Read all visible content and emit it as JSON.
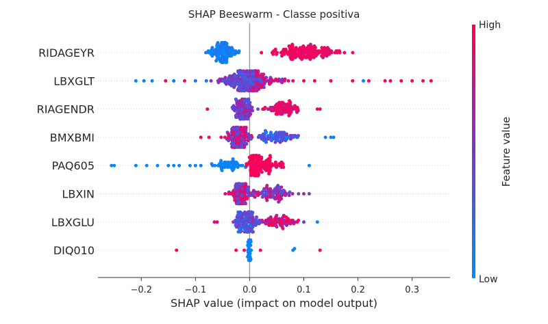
{
  "chart_data": {
    "type": "scatter",
    "subtype": "shap-beeswarm",
    "title": "SHAP Beeswarm - Classe positiva",
    "xlabel": "SHAP value (impact on model output)",
    "colorbar_label": "Feature value",
    "colorbar_high": "High",
    "colorbar_low": "Low",
    "xlim": [
      -0.28,
      0.37
    ],
    "xticks": [
      -0.2,
      -0.1,
      0.0,
      0.1,
      0.2,
      0.3
    ],
    "xtick_labels": [
      "−0.2",
      "−0.1",
      "0.0",
      "0.1",
      "0.2",
      "0.3"
    ],
    "colors": {
      "low": "#008bfb",
      "high": "#ff0052",
      "zero_line": "#999999",
      "grid": "#cccccc"
    },
    "features": [
      {
        "name": "RIDAGEYR",
        "clusters": [
          {
            "center": -0.05,
            "spread": 0.025,
            "count": 120,
            "value_low": 0.0,
            "value_high": 0.15
          },
          {
            "center": 0.1,
            "spread": 0.055,
            "count": 160,
            "value_low": 0.8,
            "value_high": 1.0
          }
        ],
        "outliers": [
          {
            "x": 0.175,
            "v": 0.95
          }
        ]
      },
      {
        "name": "LBXGLT",
        "clusters": [
          {
            "center": -0.015,
            "spread": 0.035,
            "count": 150,
            "value_low": 0.2,
            "value_high": 0.7
          },
          {
            "center": 0.02,
            "spread": 0.04,
            "count": 90,
            "value_low": 0.4,
            "value_high": 0.9
          }
        ],
        "outliers": [
          {
            "x": -0.21,
            "v": 0.05
          },
          {
            "x": -0.195,
            "v": 0.05
          },
          {
            "x": -0.18,
            "v": 0.05
          },
          {
            "x": -0.155,
            "v": 0.9
          },
          {
            "x": -0.14,
            "v": 0.1
          },
          {
            "x": -0.12,
            "v": 0.85
          },
          {
            "x": -0.1,
            "v": 0.1
          },
          {
            "x": -0.08,
            "v": 0.15
          },
          {
            "x": 0.08,
            "v": 0.9
          },
          {
            "x": 0.1,
            "v": 0.95
          },
          {
            "x": 0.12,
            "v": 0.95
          },
          {
            "x": 0.15,
            "v": 0.9
          },
          {
            "x": 0.19,
            "v": 0.95
          },
          {
            "x": 0.21,
            "v": 0.1
          },
          {
            "x": 0.22,
            "v": 0.95
          },
          {
            "x": 0.25,
            "v": 0.95
          },
          {
            "x": 0.26,
            "v": 0.9
          },
          {
            "x": 0.28,
            "v": 0.95
          },
          {
            "x": 0.3,
            "v": 0.95
          },
          {
            "x": 0.32,
            "v": 0.95
          },
          {
            "x": 0.335,
            "v": 0.95
          }
        ]
      },
      {
        "name": "RIAGENDR",
        "clusters": [
          {
            "center": -0.01,
            "spread": 0.018,
            "count": 110,
            "value_low": 0.3,
            "value_high": 0.75
          },
          {
            "center": 0.06,
            "spread": 0.035,
            "count": 80,
            "value_low": 0.7,
            "value_high": 1.0
          }
        ],
        "outliers": [
          {
            "x": -0.078,
            "v": 0.95
          },
          {
            "x": 0.125,
            "v": 0.95
          },
          {
            "x": 0.13,
            "v": 0.95
          }
        ]
      },
      {
        "name": "BMXBMI",
        "clusters": [
          {
            "center": -0.02,
            "spread": 0.02,
            "count": 140,
            "value_low": 0.3,
            "value_high": 0.95
          },
          {
            "center": 0.05,
            "spread": 0.04,
            "count": 80,
            "value_low": 0.0,
            "value_high": 0.6
          }
        ],
        "outliers": [
          {
            "x": -0.09,
            "v": 0.95
          },
          {
            "x": -0.075,
            "v": 0.95
          },
          {
            "x": 0.14,
            "v": 0.1
          },
          {
            "x": 0.15,
            "v": 0.05
          },
          {
            "x": 0.155,
            "v": 0.1
          }
        ]
      },
      {
        "name": "PAQ605",
        "clusters": [
          {
            "center": 0.01,
            "spread": 0.012,
            "count": 140,
            "value_low": 0.85,
            "value_high": 1.0
          },
          {
            "center": -0.04,
            "spread": 0.025,
            "count": 50,
            "value_low": 0.0,
            "value_high": 0.1
          },
          {
            "center": 0.04,
            "spread": 0.02,
            "count": 50,
            "value_low": 0.85,
            "value_high": 1.0
          }
        ],
        "outliers": [
          {
            "x": -0.255,
            "v": 0.05
          },
          {
            "x": -0.25,
            "v": 0.05
          },
          {
            "x": -0.21,
            "v": 0.05
          },
          {
            "x": -0.19,
            "v": 0.05
          },
          {
            "x": -0.17,
            "v": 0.05
          },
          {
            "x": -0.15,
            "v": 0.05
          },
          {
            "x": -0.14,
            "v": 0.05
          },
          {
            "x": -0.13,
            "v": 0.05
          },
          {
            "x": -0.11,
            "v": 0.05
          },
          {
            "x": -0.1,
            "v": 0.05
          },
          {
            "x": -0.09,
            "v": 0.05
          },
          {
            "x": -0.07,
            "v": 0.05
          },
          {
            "x": 0.11,
            "v": 0.05
          }
        ]
      },
      {
        "name": "LBXIN",
        "clusters": [
          {
            "center": -0.015,
            "spread": 0.02,
            "count": 120,
            "value_low": 0.3,
            "value_high": 1.0
          },
          {
            "center": 0.04,
            "spread": 0.035,
            "count": 90,
            "value_low": 0.3,
            "value_high": 0.9
          }
        ],
        "outliers": [
          {
            "x": -0.045,
            "v": 0.9
          },
          {
            "x": 0.1,
            "v": 0.7
          },
          {
            "x": 0.11,
            "v": 0.5
          }
        ]
      },
      {
        "name": "LBXGLU",
        "clusters": [
          {
            "center": -0.005,
            "spread": 0.02,
            "count": 130,
            "value_low": 0.1,
            "value_high": 0.7
          },
          {
            "center": 0.05,
            "spread": 0.03,
            "count": 70,
            "value_low": 0.5,
            "value_high": 1.0
          }
        ],
        "outliers": [
          {
            "x": -0.065,
            "v": 0.9
          },
          {
            "x": -0.06,
            "v": 0.8
          },
          {
            "x": 0.09,
            "v": 0.95
          },
          {
            "x": 0.1,
            "v": 0.5
          },
          {
            "x": 0.125,
            "v": 0.05
          }
        ]
      },
      {
        "name": "DIQ010",
        "clusters": [
          {
            "center": 0.0,
            "spread": 0.003,
            "count": 70,
            "value_low": 0.0,
            "value_high": 0.1
          }
        ],
        "outliers": [
          {
            "x": -0.135,
            "v": 0.95
          },
          {
            "x": -0.025,
            "v": 0.95
          },
          {
            "x": -0.01,
            "v": 0.95
          },
          {
            "x": 0.02,
            "v": 0.95
          },
          {
            "x": 0.08,
            "v": 0.05
          },
          {
            "x": 0.083,
            "v": 0.05
          },
          {
            "x": 0.13,
            "v": 0.95
          }
        ]
      }
    ]
  }
}
